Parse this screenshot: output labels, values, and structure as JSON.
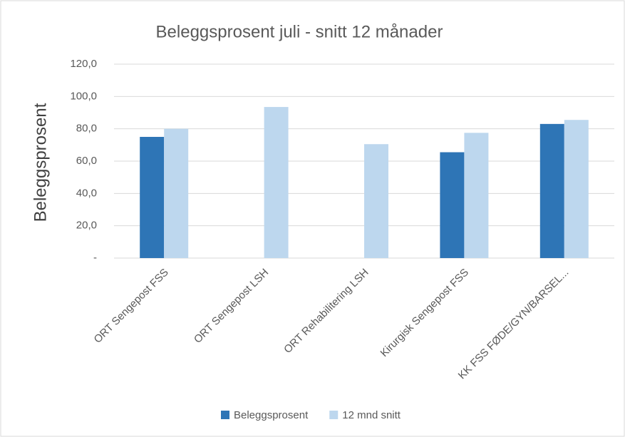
{
  "chart_data": {
    "type": "bar",
    "title": "Beleggsprosent juli -  snitt 12 månader",
    "y_label": "Beleggsprosent",
    "categories": [
      "ORT Sengepost FSS",
      "ORT Sengepost LSH",
      "ORT Rehabilitering LSH",
      "Kirurgisk Sengepost FSS",
      "KK FSS FØDE/GYN/BARSEL..."
    ],
    "series": [
      {
        "name": "Beleggsprosent",
        "color": "#2e75b6",
        "values": [
          75,
          null,
          null,
          65.5,
          83
        ]
      },
      {
        "name": "12 mnd snitt",
        "color": "#bdd7ee",
        "values": [
          80,
          93.5,
          70.5,
          77.5,
          85.5
        ]
      }
    ],
    "ylim": [
      0,
      120
    ],
    "yticks": [
      {
        "value": 0,
        "label": "-"
      },
      {
        "value": 20,
        "label": "20,0"
      },
      {
        "value": 40,
        "label": "40,0"
      },
      {
        "value": 60,
        "label": "60,0"
      },
      {
        "value": 80,
        "label": "80,0"
      },
      {
        "value": 100,
        "label": "100,0"
      },
      {
        "value": 120,
        "label": "120,0"
      }
    ],
    "grid": true,
    "legend": "bottom"
  }
}
